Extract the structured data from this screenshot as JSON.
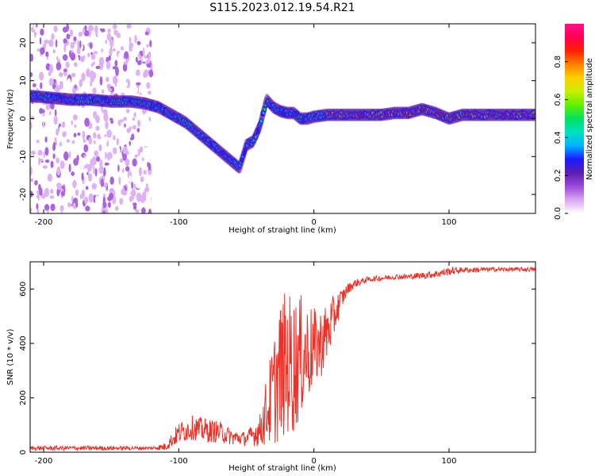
{
  "title": "S115.2023.012.19.54.R21",
  "chart_data": [
    {
      "type": "heatmap",
      "xlabel": "Height of straight line (km)",
      "ylabel": "Frequency (Hz)",
      "xlim": [
        -210,
        164
      ],
      "ylim": [
        -25,
        25
      ],
      "xticks": [
        -200,
        -100,
        0,
        100
      ],
      "yticks": [
        20,
        10,
        0,
        -10,
        -20
      ],
      "colorbar": {
        "label": "Normalized spectral amplitude",
        "range": [
          0,
          1
        ],
        "ticks": [
          "0.0",
          "0.2",
          "0.4",
          "0.6",
          "0.8"
        ],
        "colormap": [
          "#ffffff",
          "#d9a6f2",
          "#9c4ad9",
          "#5b1fb0",
          "#1a1aff",
          "#00b4ff",
          "#00e0c0",
          "#00e060",
          "#60f000",
          "#c8f000",
          "#ffd000",
          "#ff8000",
          "#ff2000",
          "#ff0050",
          "#ff1088"
        ]
      },
      "ridge": {
        "x": [
          -210,
          -195,
          -180,
          -165,
          -150,
          -135,
          -125,
          -115,
          -105,
          -95,
          -85,
          -75,
          -65,
          -55,
          -50,
          -45,
          -40,
          -35,
          -30,
          -25,
          -20,
          -15,
          -10,
          -5,
          0,
          10,
          20,
          30,
          40,
          50,
          60,
          70,
          80,
          90,
          100,
          110,
          120,
          130,
          140,
          150,
          164
        ],
        "y": [
          6,
          5.5,
          5,
          5,
          4.5,
          4.5,
          4,
          3,
          1,
          -1,
          -4,
          -7,
          -10,
          -13,
          -7,
          -6,
          -2,
          5,
          3,
          2,
          1.5,
          1.5,
          0,
          0,
          0.5,
          1,
          1,
          1,
          1,
          1,
          1.5,
          1.5,
          2.5,
          1.5,
          0,
          1,
          1,
          1,
          1,
          1,
          1
        ]
      }
    },
    {
      "type": "line",
      "xlabel": "Height of straight line (km)",
      "ylabel": "SNR (10 * v/v)",
      "xlim": [
        -210,
        164
      ],
      "ylim": [
        0,
        700
      ],
      "xticks": [
        -200,
        -100,
        0,
        100
      ],
      "yticks": [
        0,
        200,
        400,
        600
      ],
      "color": "#e8332a",
      "envelope": {
        "x": [
          -210,
          -180,
          -150,
          -120,
          -110,
          -100,
          -90,
          -80,
          -70,
          -60,
          -50,
          -40,
          -30,
          -25,
          -20,
          -15,
          -10,
          -5,
          0,
          5,
          10,
          15,
          20,
          25,
          30,
          40,
          50,
          60,
          70,
          80,
          90,
          100,
          110,
          120,
          130,
          140,
          150,
          164
        ],
        "y": [
          15,
          15,
          15,
          15,
          20,
          70,
          90,
          80,
          75,
          55,
          50,
          80,
          220,
          300,
          330,
          320,
          350,
          370,
          380,
          400,
          440,
          500,
          560,
          600,
          620,
          635,
          640,
          645,
          645,
          650,
          655,
          665,
          670,
          670,
          672,
          672,
          672,
          672
        ],
        "noise": [
          8,
          8,
          8,
          6,
          15,
          40,
          45,
          45,
          40,
          30,
          25,
          60,
          200,
          260,
          270,
          260,
          230,
          190,
          150,
          130,
          110,
          80,
          40,
          20,
          15,
          10,
          10,
          10,
          10,
          12,
          15,
          15,
          10,
          10,
          8,
          8,
          8,
          8
        ]
      }
    }
  ]
}
